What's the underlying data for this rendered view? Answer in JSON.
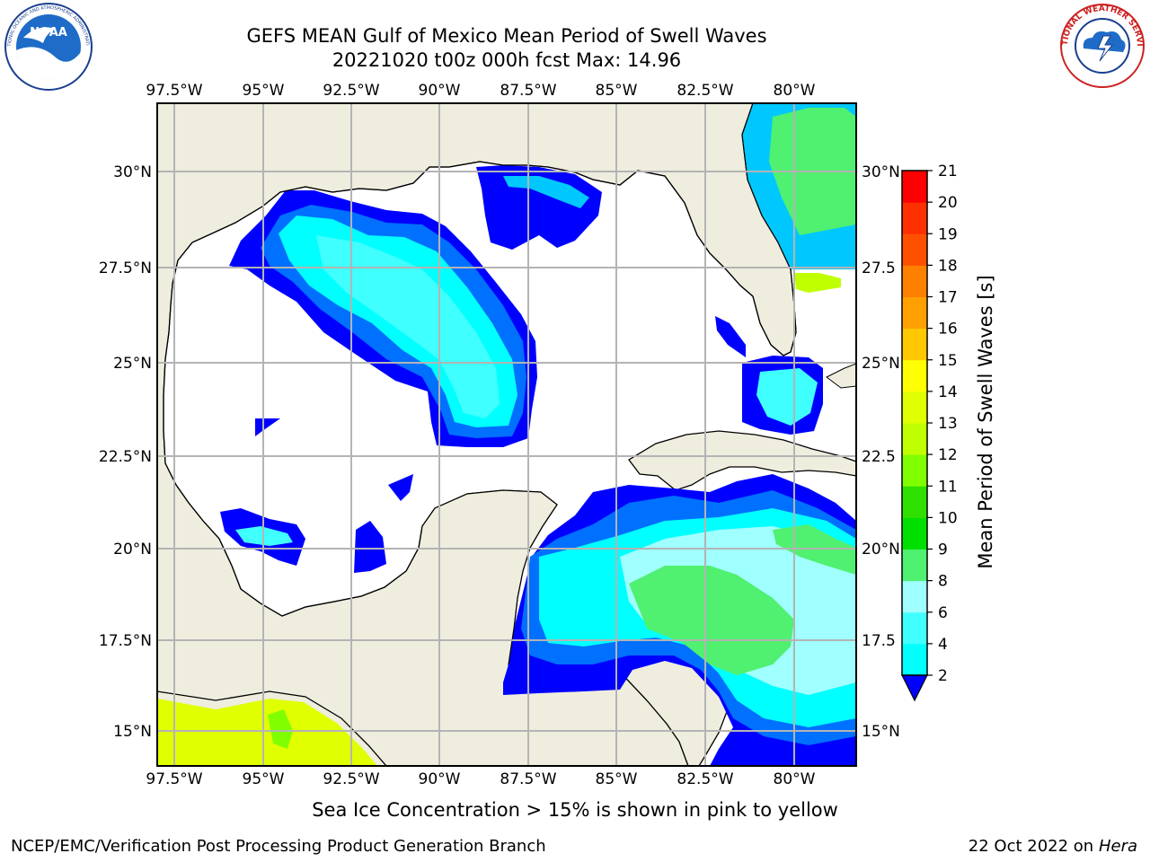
{
  "title": {
    "line1": "GEFS MEAN Gulf of Mexico Mean Period of Swell Waves",
    "line2": "20221020 t00z 000h fcst   Max: 14.96"
  },
  "logos": {
    "left": {
      "text": "NOAA",
      "arc_text": "NATIONAL OCEANIC AND ATMOSPHERIC ADMINISTRATION",
      "bottom_text": "U.S. DEPARTMENT OF COMMERCE"
    },
    "right": {
      "arc_text": "NATIONAL WEATHER SERVICE"
    }
  },
  "map": {
    "lon_labels": [
      "97.5°W",
      "95°W",
      "92.5°W",
      "90°W",
      "87.5°W",
      "85°W",
      "82.5°W",
      "80°W"
    ],
    "lat_labels_left": [
      "30°N",
      "27.5°N",
      "25°N",
      "22.5°N",
      "20°N",
      "17.5°N",
      "15°N"
    ],
    "lat_labels_right": [
      "30°N",
      "27.5",
      "25°N",
      "22.5",
      "20°N",
      "17.5",
      "15°N"
    ],
    "land_color": "#efedde",
    "ocean_color": "#ffffff",
    "grid_color": "#b4b4b4"
  },
  "colorbar": {
    "title": "Mean Period of Swell Waves [s]",
    "ticks": [
      "2",
      "4",
      "6",
      "8",
      "9",
      "10",
      "11",
      "12",
      "13",
      "14",
      "15",
      "16",
      "17",
      "18",
      "19",
      "20",
      "21"
    ],
    "colors": [
      "#0000ff",
      "#0070ff",
      "#00c8ff",
      "#00ffff",
      "#40ffff",
      "#a0ffff",
      "#50f070",
      "#00e000",
      "#30e000",
      "#80ff00",
      "#c0ff00",
      "#e0ff00",
      "#ffff00",
      "#ffc800",
      "#ffa000",
      "#ff8000",
      "#ff5000",
      "#ff3000",
      "#ff0000"
    ]
  },
  "footer": {
    "note": "Sea Ice Concentration > 15% is shown in pink to yellow",
    "left": "NCEP/EMC/Verification Post Processing Product Generation Branch",
    "right_date": "22 Oct 2022 on ",
    "right_machine": "Hera"
  }
}
